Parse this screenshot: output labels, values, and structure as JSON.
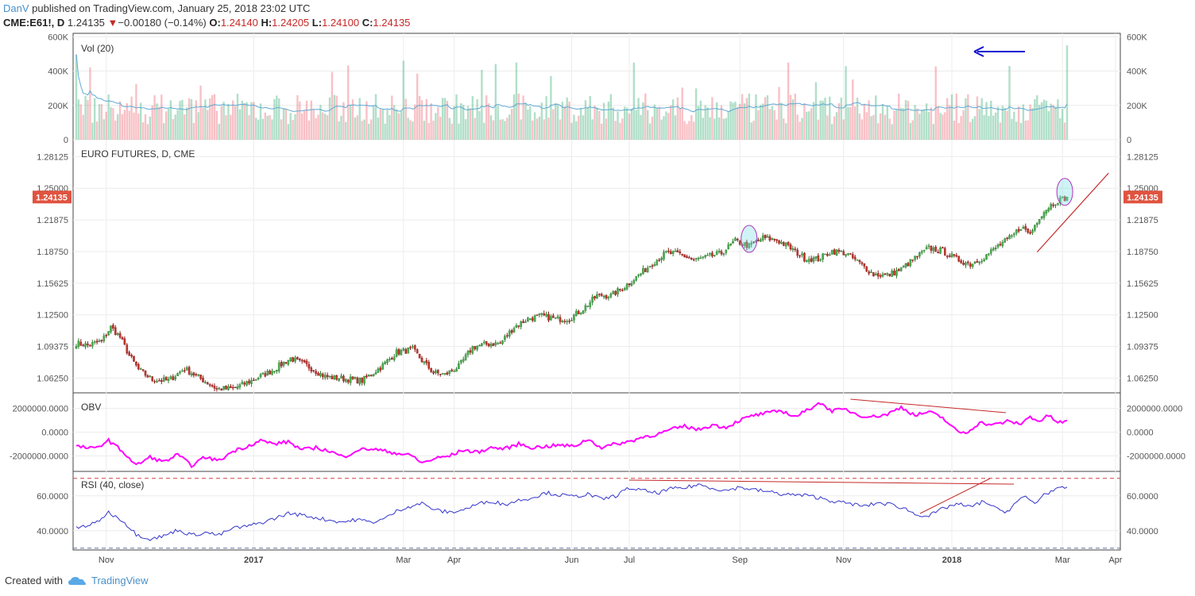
{
  "header": {
    "author": "DanV",
    "published": " published on TradingView.com, January 25, 2018 23:02 UTC",
    "symbol": "CME:E61!, D",
    "price": "1.24135",
    "change_arrow": "▼",
    "change": "−0.00180 (−0.14%)",
    "o_label": "O:",
    "o": "1.24140",
    "h_label": "H:",
    "h": "1.24205",
    "l_label": "L:",
    "l": "1.24100",
    "c_label": "C:",
    "c": "1.24135"
  },
  "footer": {
    "created_with": "Created with",
    "brand": "TradingView"
  },
  "colors": {
    "up": "#53b987",
    "down": "#eb4d5c",
    "obv": "#ff00ff",
    "rsi": "#3333cc",
    "vol_ma": "#5fa8d3",
    "trend": "#c62828",
    "arrow": "#1010d0",
    "last_price_bg": "#e0533f"
  },
  "chart_data": [
    {
      "type": "bar",
      "title": "Vol (20)",
      "yaxis_ticks": [
        "600K",
        "400K",
        "200K",
        "0"
      ],
      "tick_values": [
        600000,
        400000,
        200000,
        0
      ],
      "ylim": [
        0,
        620000
      ],
      "description": "daily volume bars with 20-period moving average; last bar ~550K marked by arrow",
      "peak_last": 550000
    },
    {
      "type": "candlestick",
      "title": "EURO FUTURES, D, CME",
      "yaxis_ticks": [
        "1.28125",
        "1.25000",
        "1.21875",
        "1.18750",
        "1.15625",
        "1.12500",
        "1.09375",
        "1.06250"
      ],
      "tick_values": [
        1.28125,
        1.25,
        1.21875,
        1.1875,
        1.15625,
        1.125,
        1.09375,
        1.0625
      ],
      "ylim": [
        1.048,
        1.298
      ],
      "last_price_label": "1.24135",
      "last_price": 1.24135,
      "anchors": [
        [
          0,
          1.097
        ],
        [
          5,
          1.095
        ],
        [
          11,
          1.099
        ],
        [
          15,
          1.113
        ],
        [
          19,
          1.103
        ],
        [
          23,
          1.085
        ],
        [
          27,
          1.071
        ],
        [
          33,
          1.061
        ],
        [
          40,
          1.06
        ],
        [
          47,
          1.072
        ],
        [
          54,
          1.062
        ],
        [
          61,
          1.052
        ],
        [
          68,
          1.052
        ],
        [
          76,
          1.06
        ],
        [
          85,
          1.07
        ],
        [
          93,
          1.082
        ],
        [
          100,
          1.075
        ],
        [
          108,
          1.064
        ],
        [
          116,
          1.062
        ],
        [
          124,
          1.06
        ],
        [
          132,
          1.073
        ],
        [
          139,
          1.088
        ],
        [
          146,
          1.091
        ],
        [
          150,
          1.08
        ],
        [
          155,
          1.068
        ],
        [
          160,
          1.066
        ],
        [
          166,
          1.074
        ],
        [
          172,
          1.093
        ],
        [
          178,
          1.096
        ],
        [
          184,
          1.097
        ],
        [
          190,
          1.113
        ],
        [
          196,
          1.121
        ],
        [
          202,
          1.124
        ],
        [
          208,
          1.121
        ],
        [
          214,
          1.121
        ],
        [
          220,
          1.131
        ],
        [
          226,
          1.144
        ],
        [
          232,
          1.144
        ],
        [
          238,
          1.153
        ],
        [
          244,
          1.164
        ],
        [
          250,
          1.176
        ],
        [
          256,
          1.186
        ],
        [
          262,
          1.185
        ],
        [
          268,
          1.179
        ],
        [
          274,
          1.182
        ],
        [
          280,
          1.186
        ],
        [
          286,
          1.198
        ],
        [
          292,
          1.193
        ],
        [
          298,
          1.201
        ],
        [
          304,
          1.199
        ],
        [
          310,
          1.191
        ],
        [
          316,
          1.181
        ],
        [
          322,
          1.18
        ],
        [
          328,
          1.188
        ],
        [
          334,
          1.186
        ],
        [
          340,
          1.176
        ],
        [
          346,
          1.165
        ],
        [
          352,
          1.164
        ],
        [
          358,
          1.17
        ],
        [
          364,
          1.181
        ],
        [
          370,
          1.191
        ],
        [
          376,
          1.188
        ],
        [
          382,
          1.18
        ],
        [
          388,
          1.175
        ],
        [
          394,
          1.182
        ],
        [
          400,
          1.193
        ],
        [
          406,
          1.202
        ],
        [
          410,
          1.212
        ],
        [
          414,
          1.205
        ],
        [
          418,
          1.222
        ],
        [
          422,
          1.232
        ],
        [
          426,
          1.238
        ],
        [
          430,
          1.241
        ]
      ]
    },
    {
      "type": "line",
      "title": "OBV",
      "yaxis_ticks": [
        "2000000.0000",
        "0.0000",
        "-2000000.0000"
      ],
      "tick_values": [
        2000000,
        0,
        -2000000
      ],
      "ylim": [
        -3300000,
        3300000
      ],
      "anchors": [
        [
          0,
          -1.2
        ],
        [
          8,
          -1.4
        ],
        [
          14,
          -0.7
        ],
        [
          20,
          -1.6
        ],
        [
          26,
          -2.8
        ],
        [
          32,
          -2.1
        ],
        [
          38,
          -2.5
        ],
        [
          44,
          -1.9
        ],
        [
          50,
          -2.8
        ],
        [
          56,
          -2.1
        ],
        [
          62,
          -2.4
        ],
        [
          68,
          -1.6
        ],
        [
          74,
          -1.2
        ],
        [
          80,
          -0.7
        ],
        [
          86,
          -1.0
        ],
        [
          92,
          -0.8
        ],
        [
          98,
          -1.5
        ],
        [
          104,
          -1.3
        ],
        [
          110,
          -1.6
        ],
        [
          116,
          -2.1
        ],
        [
          122,
          -1.5
        ],
        [
          128,
          -1.4
        ],
        [
          134,
          -1.6
        ],
        [
          140,
          -1.8
        ],
        [
          146,
          -2.0
        ],
        [
          150,
          -2.6
        ],
        [
          156,
          -2.2
        ],
        [
          162,
          -2.0
        ],
        [
          168,
          -1.5
        ],
        [
          174,
          -1.7
        ],
        [
          180,
          -1.3
        ],
        [
          186,
          -1.4
        ],
        [
          192,
          -1.0
        ],
        [
          198,
          -1.3
        ],
        [
          204,
          -1.2
        ],
        [
          210,
          -1.1
        ],
        [
          216,
          -1.2
        ],
        [
          222,
          -0.6
        ],
        [
          228,
          -1.3
        ],
        [
          234,
          -1.0
        ],
        [
          240,
          -0.8
        ],
        [
          246,
          -0.4
        ],
        [
          252,
          -0.2
        ],
        [
          258,
          0.2
        ],
        [
          264,
          0.5
        ],
        [
          270,
          0.2
        ],
        [
          276,
          0.6
        ],
        [
          282,
          0.4
        ],
        [
          288,
          1.0
        ],
        [
          294,
          1.4
        ],
        [
          300,
          1.6
        ],
        [
          306,
          1.8
        ],
        [
          312,
          1.3
        ],
        [
          318,
          1.9
        ],
        [
          322,
          2.5
        ],
        [
          328,
          1.8
        ],
        [
          334,
          1.9
        ],
        [
          340,
          1.4
        ],
        [
          346,
          1.3
        ],
        [
          352,
          1.5
        ],
        [
          358,
          2.1
        ],
        [
          364,
          1.4
        ],
        [
          370,
          1.7
        ],
        [
          376,
          1.2
        ],
        [
          382,
          0.1
        ],
        [
          386,
          -0.1
        ],
        [
          392,
          0.8
        ],
        [
          398,
          0.6
        ],
        [
          404,
          0.9
        ],
        [
          410,
          0.7
        ],
        [
          414,
          1.3
        ],
        [
          418,
          0.9
        ],
        [
          422,
          1.4
        ],
        [
          426,
          0.8
        ],
        [
          430,
          0.9
        ]
      ],
      "anchor_units": "millions"
    },
    {
      "type": "line",
      "title": "RSI (40, close)",
      "yaxis_ticks": [
        "60.0000",
        "40.0000"
      ],
      "tick_values": [
        60,
        40
      ],
      "ylim": [
        29.0,
        74.0
      ],
      "bands": [
        70,
        30
      ],
      "anchors": [
        [
          0,
          41.7
        ],
        [
          8,
          44.0
        ],
        [
          14,
          50.5
        ],
        [
          20,
          46.0
        ],
        [
          26,
          38.0
        ],
        [
          32,
          35.3
        ],
        [
          38,
          37.0
        ],
        [
          44,
          40.5
        ],
        [
          50,
          37.5
        ],
        [
          56,
          39.0
        ],
        [
          62,
          37.5
        ],
        [
          68,
          41.5
        ],
        [
          74,
          42.5
        ],
        [
          80,
          44.5
        ],
        [
          86,
          47.0
        ],
        [
          92,
          50.0
        ],
        [
          98,
          49.0
        ],
        [
          104,
          47.5
        ],
        [
          110,
          46.0
        ],
        [
          116,
          45.0
        ],
        [
          122,
          46.5
        ],
        [
          128,
          44.8
        ],
        [
          134,
          47.0
        ],
        [
          140,
          52.0
        ],
        [
          146,
          54.5
        ],
        [
          150,
          55.7
        ],
        [
          156,
          51.8
        ],
        [
          162,
          50.5
        ],
        [
          168,
          52.0
        ],
        [
          174,
          55.2
        ],
        [
          180,
          57.0
        ],
        [
          186,
          55.0
        ],
        [
          192,
          57.5
        ],
        [
          198,
          59.0
        ],
        [
          204,
          61.8
        ],
        [
          210,
          60.5
        ],
        [
          216,
          59.5
        ],
        [
          222,
          61.0
        ],
        [
          228,
          58.0
        ],
        [
          234,
          60.0
        ],
        [
          240,
          64.5
        ],
        [
          246,
          63.0
        ],
        [
          252,
          61.5
        ],
        [
          258,
          64.0
        ],
        [
          264,
          64.5
        ],
        [
          270,
          66.5
        ],
        [
          276,
          64.5
        ],
        [
          282,
          63.0
        ],
        [
          288,
          65.0
        ],
        [
          294,
          63.5
        ],
        [
          300,
          62.5
        ],
        [
          306,
          61.0
        ],
        [
          312,
          60.5
        ],
        [
          318,
          60.0
        ],
        [
          324,
          58.5
        ],
        [
          330,
          56.5
        ],
        [
          336,
          55.5
        ],
        [
          342,
          54.0
        ],
        [
          348,
          56.0
        ],
        [
          354,
          55.0
        ],
        [
          360,
          52.5
        ],
        [
          364,
          49.5
        ],
        [
          370,
          48.5
        ],
        [
          376,
          52.5
        ],
        [
          382,
          55.5
        ],
        [
          388,
          53.5
        ],
        [
          394,
          57.0
        ],
        [
          400,
          52.0
        ],
        [
          404,
          51.0
        ],
        [
          408,
          56.5
        ],
        [
          412,
          59.5
        ],
        [
          416,
          55.5
        ],
        [
          420,
          61.0
        ],
        [
          424,
          63.0
        ],
        [
          430,
          65.0
        ]
      ]
    }
  ],
  "xaxis": {
    "labels": [
      {
        "text": "Nov",
        "bar": 13,
        "bold": false
      },
      {
        "text": "2017",
        "bar": 77,
        "bold": true
      },
      {
        "text": "Mar",
        "bar": 142,
        "bold": false
      },
      {
        "text": "Apr",
        "bar": 164,
        "bold": false
      },
      {
        "text": "Jun",
        "bar": 215,
        "bold": false
      },
      {
        "text": "Jul",
        "bar": 240,
        "bold": false
      },
      {
        "text": "Sep",
        "bar": 288,
        "bold": false
      },
      {
        "text": "Nov",
        "bar": 333,
        "bold": false
      },
      {
        "text": "2018",
        "bar": 380,
        "bold": true
      },
      {
        "text": "Mar",
        "bar": 428,
        "bold": false
      },
      {
        "text": "Apr",
        "bar": 451,
        "bold": false
      }
    ]
  }
}
